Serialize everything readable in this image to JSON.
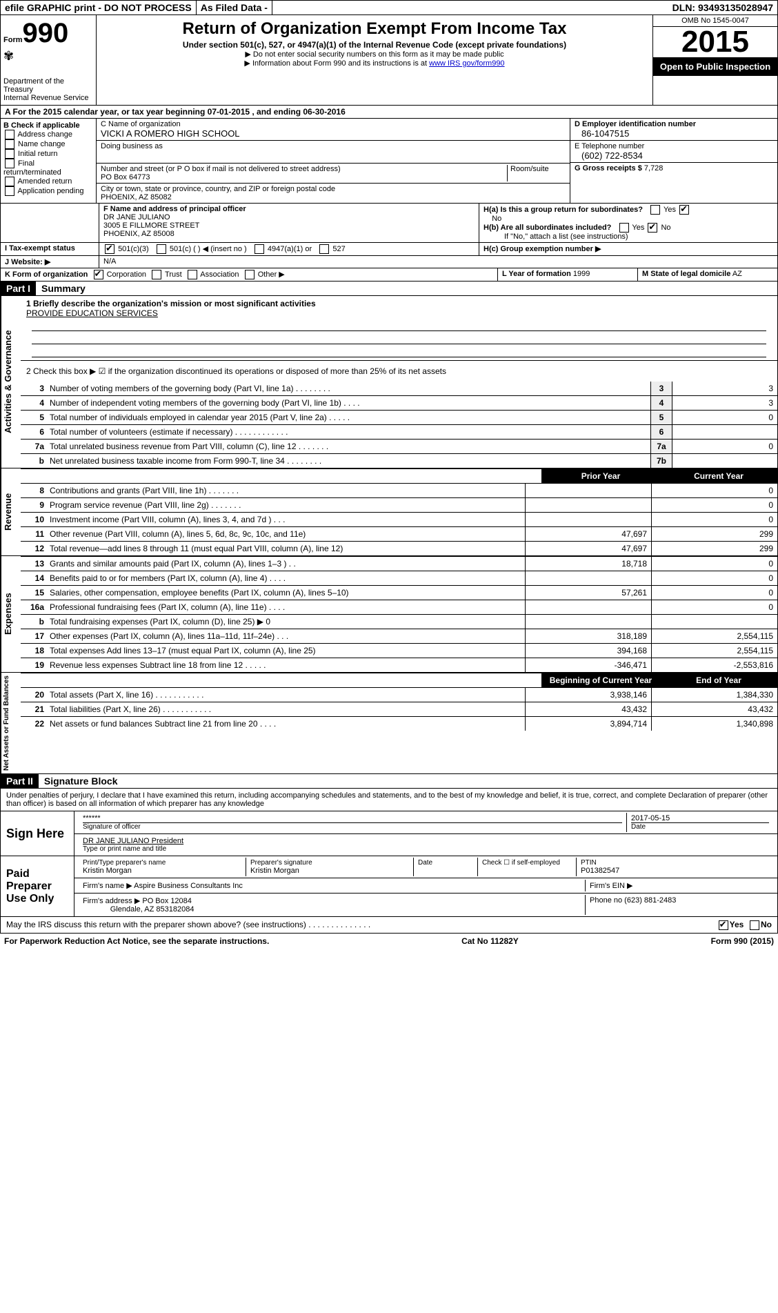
{
  "topbar": {
    "efile": "efile GRAPHIC print - DO NOT PROCESS",
    "asfiled": "As Filed Data -",
    "dln_label": "DLN:",
    "dln": "93493135028947"
  },
  "header": {
    "form_label": "Form",
    "form_num": "990",
    "dept": "Department of the Treasury",
    "irs": "Internal Revenue Service",
    "title": "Return of Organization Exempt From Income Tax",
    "subtitle": "Under section 501(c), 527, or 4947(a)(1) of the Internal Revenue Code (except private foundations)",
    "note1": "▶ Do not enter social security numbers on this form as it may be made public",
    "note2": "▶ Information about Form 990 and its instructions is at ",
    "note2_link": "www IRS gov/form990",
    "omb": "OMB No 1545-0047",
    "year": "2015",
    "open": "Open to Public Inspection"
  },
  "rowA": {
    "text": "A  For the 2015 calendar year, or tax year beginning 07-01-2015    , and ending 06-30-2016"
  },
  "B": {
    "label": "B  Check if applicable",
    "opts": [
      "Address change",
      "Name change",
      "Initial return",
      "Final return/terminated",
      "Amended return",
      "Application pending"
    ]
  },
  "C": {
    "name_label": "C  Name of organization",
    "name": "VICKI A ROMERO HIGH SCHOOL",
    "dba_label": "Doing business as",
    "dba": "",
    "addr_label": "Number and street (or P O box if mail is not delivered to street address)",
    "room_label": "Room/suite",
    "addr": "PO Box 64773",
    "city_label": "City or town, state or province, country, and ZIP or foreign postal code",
    "city": "PHOENIX, AZ  85082"
  },
  "D": {
    "label": "D Employer identification number",
    "val": "86-1047515"
  },
  "E": {
    "label": "E Telephone number",
    "val": "(602) 722-8534"
  },
  "G": {
    "label": "G Gross receipts $",
    "val": "7,728"
  },
  "F": {
    "label": "F  Name and address of principal officer",
    "name": "DR JANE JULIANO",
    "addr1": "3005 E FILLMORE STREET",
    "addr2": "PHOENIX, AZ  85008"
  },
  "H": {
    "a": "H(a)  Is this a group return for subordinates?",
    "a_ans": "No",
    "b": "H(b)  Are all subordinates included?",
    "b_note": "If \"No,\" attach a list  (see instructions)",
    "c": "H(c)  Group exemption number ▶"
  },
  "I": {
    "label": "I  Tax-exempt status",
    "opt1": "501(c)(3)",
    "opt2": "501(c) (   ) ◀ (insert no )",
    "opt3": "4947(a)(1) or",
    "opt4": "527"
  },
  "J": {
    "label": "J  Website: ▶",
    "val": "N/A"
  },
  "K": {
    "label": "K Form of organization",
    "opts": [
      "Corporation",
      "Trust",
      "Association",
      "Other ▶"
    ],
    "L_label": "L Year of formation",
    "L_val": "1999",
    "M_label": "M State of legal domicile",
    "M_val": "AZ"
  },
  "part1": {
    "hdr": "Part I",
    "title": "Summary",
    "q1": "1 Briefly describe the organization's mission or most significant activities",
    "mission": "PROVIDE EDUCATION SERVICES",
    "q2": "2  Check this box ▶ ☑ if the organization discontinued its operations or disposed of more than 25% of its net assets",
    "lines_gov": [
      {
        "n": "3",
        "d": "Number of voting members of the governing body (Part VI, line 1a) . . . . . . . .",
        "b": "3",
        "v": "3"
      },
      {
        "n": "4",
        "d": "Number of independent voting members of the governing body (Part VI, line 1b) . . . .",
        "b": "4",
        "v": "3"
      },
      {
        "n": "5",
        "d": "Total number of individuals employed in calendar year 2015 (Part V, line 2a) . . . . .",
        "b": "5",
        "v": "0"
      },
      {
        "n": "6",
        "d": "Total number of volunteers (estimate if necessary) . . . . . . . . . . . .",
        "b": "6",
        "v": ""
      },
      {
        "n": "7a",
        "d": "Total unrelated business revenue from Part VIII, column (C), line 12 . . . . . . .",
        "b": "7a",
        "v": "0"
      },
      {
        "n": "b",
        "d": "Net unrelated business taxable income from Form 990-T, line 34 . . . . . . . .",
        "b": "7b",
        "v": ""
      }
    ],
    "hdr_prior": "Prior Year",
    "hdr_curr": "Current Year",
    "revenue": [
      {
        "n": "8",
        "d": "Contributions and grants (Part VIII, line 1h) . . . . . . .",
        "p": "",
        "c": "0"
      },
      {
        "n": "9",
        "d": "Program service revenue (Part VIII, line 2g) . . . . . . .",
        "p": "",
        "c": "0"
      },
      {
        "n": "10",
        "d": "Investment income (Part VIII, column (A), lines 3, 4, and 7d ) . . .",
        "p": "",
        "c": "0"
      },
      {
        "n": "11",
        "d": "Other revenue (Part VIII, column (A), lines 5, 6d, 8c, 9c, 10c, and 11e)",
        "p": "47,697",
        "c": "299"
      },
      {
        "n": "12",
        "d": "Total revenue—add lines 8 through 11 (must equal Part VIII, column (A), line 12)",
        "p": "47,697",
        "c": "299"
      }
    ],
    "expenses": [
      {
        "n": "13",
        "d": "Grants and similar amounts paid (Part IX, column (A), lines 1–3 ) . .",
        "p": "18,718",
        "c": "0"
      },
      {
        "n": "14",
        "d": "Benefits paid to or for members (Part IX, column (A), line 4) . . . .",
        "p": "",
        "c": "0"
      },
      {
        "n": "15",
        "d": "Salaries, other compensation, employee benefits (Part IX, column (A), lines 5–10)",
        "p": "57,261",
        "c": "0"
      },
      {
        "n": "16a",
        "d": "Professional fundraising fees (Part IX, column (A), line 11e) . . . .",
        "p": "",
        "c": "0"
      },
      {
        "n": "b",
        "d": "Total fundraising expenses (Part IX, column (D), line 25) ▶ 0",
        "p": "",
        "c": ""
      },
      {
        "n": "17",
        "d": "Other expenses (Part IX, column (A), lines 11a–11d, 11f–24e) . . .",
        "p": "318,189",
        "c": "2,554,115"
      },
      {
        "n": "18",
        "d": "Total expenses  Add lines 13–17 (must equal Part IX, column (A), line 25)",
        "p": "394,168",
        "c": "2,554,115"
      },
      {
        "n": "19",
        "d": "Revenue less expenses  Subtract line 18 from line 12 . . . . .",
        "p": "-346,471",
        "c": "-2,553,816"
      }
    ],
    "hdr_beg": "Beginning of Current Year",
    "hdr_end": "End of Year",
    "netassets": [
      {
        "n": "20",
        "d": "Total assets (Part X, line 16) . . . . . . . . . . .",
        "p": "3,938,146",
        "c": "1,384,330"
      },
      {
        "n": "21",
        "d": "Total liabilities (Part X, line 26) . . . . . . . . . . .",
        "p": "43,432",
        "c": "43,432"
      },
      {
        "n": "22",
        "d": "Net assets or fund balances  Subtract line 21 from line 20 . . . .",
        "p": "3,894,714",
        "c": "1,340,898"
      }
    ]
  },
  "part2": {
    "hdr": "Part II",
    "title": "Signature Block",
    "penalty": "Under penalties of perjury, I declare that I have examined this return, including accompanying schedules and statements, and to the best of my knowledge and belief, it is true, correct, and complete  Declaration of preparer (other than officer) is based on all information of which preparer has any knowledge",
    "sign_here": "Sign Here",
    "sig_stars": "******",
    "sig_of_officer": "Signature of officer",
    "sig_date": "2017-05-15",
    "date_label": "Date",
    "officer_name": "DR JANE JULIANO President",
    "type_label": "Type or print name and title",
    "paid": "Paid Preparer Use Only",
    "prep_name_label": "Print/Type preparer's name",
    "prep_name": "Kristin Morgan",
    "prep_sig_label": "Preparer's signature",
    "prep_sig": "Kristin Morgan",
    "prep_date_label": "Date",
    "self_emp": "Check ☐ if self-employed",
    "ptin_label": "PTIN",
    "ptin": "P01382547",
    "firm_name_label": "Firm's name    ▶",
    "firm_name": "Aspire Business Consultants Inc",
    "firm_ein_label": "Firm's EIN ▶",
    "firm_addr_label": "Firm's address ▶",
    "firm_addr": "PO Box 12084",
    "firm_addr2": "Glendale, AZ  853182084",
    "phone_label": "Phone no",
    "phone": "(623) 881-2483",
    "may_irs": "May the IRS discuss this return with the preparer shown above? (see instructions) . . . . . . . . . . . . . .",
    "yes": "Yes",
    "no": "No"
  },
  "footer": {
    "pra": "For Paperwork Reduction Act Notice, see the separate instructions.",
    "cat": "Cat No 11282Y",
    "form": "Form 990 (2015)"
  },
  "vlabels": {
    "gov": "Activities & Governance",
    "rev": "Revenue",
    "exp": "Expenses",
    "net": "Net Assets or Fund Balances"
  }
}
